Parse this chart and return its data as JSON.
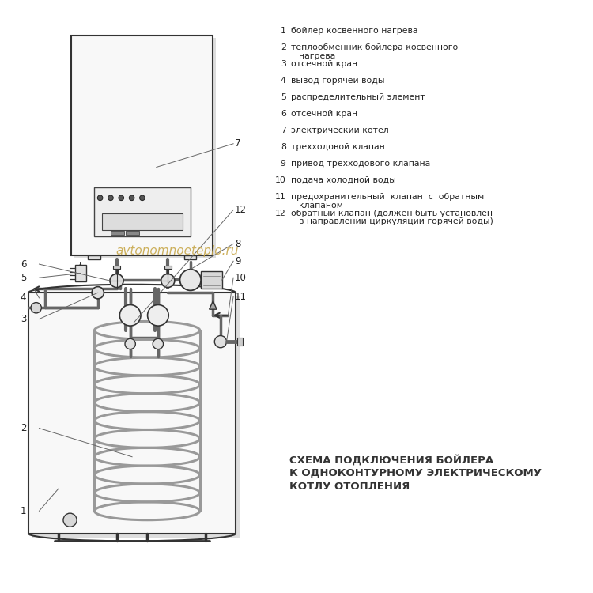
{
  "bg_color": "#ffffff",
  "legend_items": [
    {
      "num": "1",
      "text": "бойлер косвенного нагрева"
    },
    {
      "num": "2",
      "text": "теплообменник бойлера косвенного\nнагрева"
    },
    {
      "num": "3",
      "text": "отсечной кран"
    },
    {
      "num": "4",
      "text": "вывод горячей воды"
    },
    {
      "num": "5",
      "text": "распределительный элемент"
    },
    {
      "num": "6",
      "text": "отсечной кран"
    },
    {
      "num": "7",
      "text": "электрический котел"
    },
    {
      "num": "8",
      "text": "трехходовой клапан"
    },
    {
      "num": "9",
      "text": "привод трехходового клапана"
    },
    {
      "num": "10",
      "text": "подача холодной воды"
    },
    {
      "num": "11",
      "text": "предохранительный  клапан  с  обратным\nклапаном"
    },
    {
      "num": "12",
      "text": "обратный клапан (должен быть установлен\nв направлении циркуляции горячей воды)"
    }
  ],
  "caption_line1": "СХЕМА ПОДКЛЮЧЕНИЯ БОЙЛЕРА",
  "caption_line2": "К ОДНОКОНТУРНОМУ ЭЛЕКТРИЧЕСКОМУ",
  "caption_line3": "КОТЛУ ОТОПЛЕНИЯ",
  "watermark": "avtonomnoeteplo.ru",
  "line_color": "#333333",
  "pipe_color": "#666666",
  "boiler_tank_fill": "#f8f8f8",
  "boiler_unit_fill": "#f5f5f5",
  "coil_color": "#999999",
  "label_color": "#222222",
  "watermark_color": "#c8a84b",
  "shadow_color": "#cccccc"
}
